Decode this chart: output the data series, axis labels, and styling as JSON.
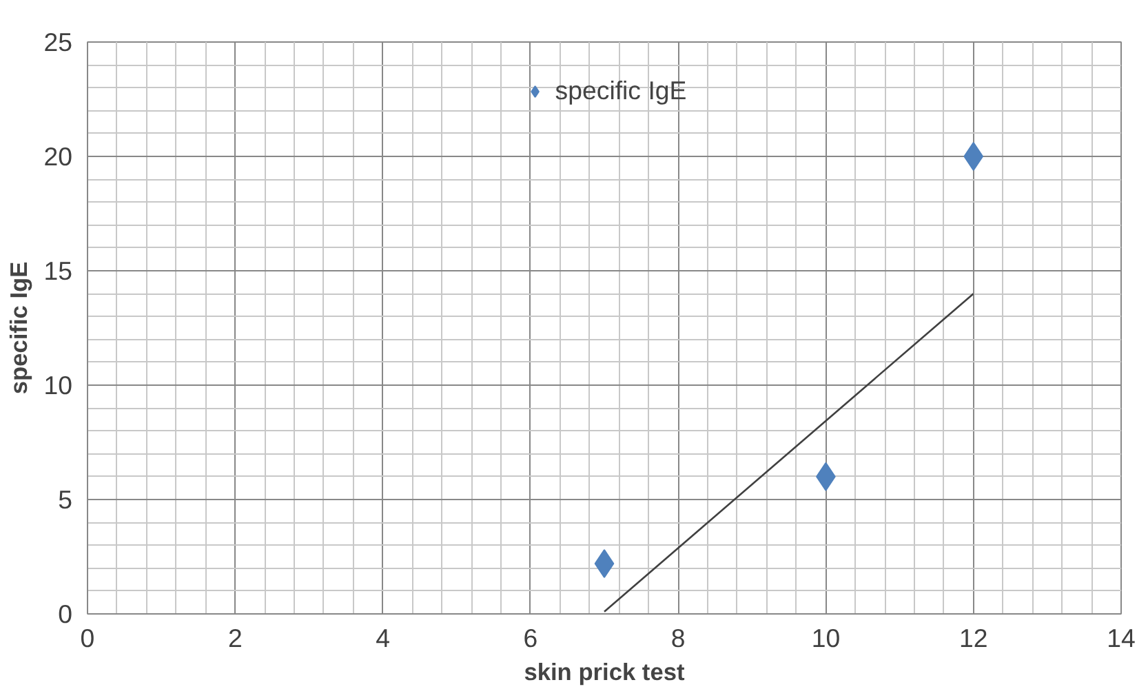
{
  "chart_data": {
    "type": "scatter",
    "xlabel": "skin prick test",
    "ylabel": "specific IgE",
    "xlim": [
      0,
      14
    ],
    "xticks": [
      0,
      2,
      4,
      6,
      8,
      10,
      12,
      14
    ],
    "ylim": [
      0,
      25
    ],
    "yticks": [
      0,
      5,
      10,
      15,
      20,
      25
    ],
    "grid": true,
    "legend": "top",
    "marker": "diamond",
    "series": [
      {
        "name": "specific IgE",
        "color": "#4f81bd",
        "x": [
          7,
          10,
          12
        ],
        "values": [
          2.2,
          6,
          20
        ]
      },
      {
        "type": "line",
        "color": "#404040",
        "x": [
          7,
          12
        ],
        "values": [
          0.1,
          14
        ],
        "marker": "none",
        "line_style": "solid"
      }
    ]
  }
}
